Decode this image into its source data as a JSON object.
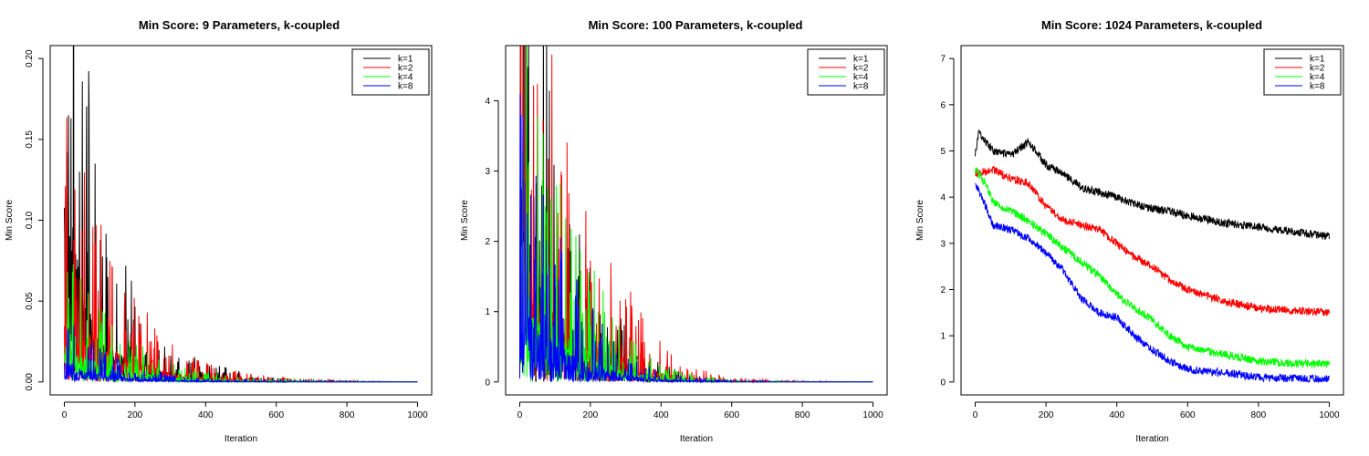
{
  "chart_data": [
    {
      "type": "line",
      "title": "Min Score: 9 Parameters, k-coupled",
      "xlabel": "Iteration",
      "ylabel": "Min Score",
      "xlim": [
        0,
        1000
      ],
      "ylim": [
        0,
        0.2
      ],
      "x_ticks": [
        0,
        200,
        400,
        600,
        800,
        1000
      ],
      "y_ticks": [
        0.0,
        0.05,
        0.1,
        0.15,
        0.2
      ],
      "y_tick_labels": [
        "0.00",
        "0.05",
        "0.10",
        "0.15",
        "0.20"
      ],
      "y_tick_rotated": true,
      "legend_position": "top-right",
      "series": [
        {
          "name": "k=1",
          "color": "#000000",
          "noisy": true,
          "points": [
            [
              0,
              0.19
            ],
            [
              5,
              0.2
            ],
            [
              10,
              0.1
            ],
            [
              20,
              0.16
            ],
            [
              40,
              0.09
            ],
            [
              60,
              0.07
            ],
            [
              80,
              0.05
            ],
            [
              100,
              0.035
            ],
            [
              150,
              0.025
            ],
            [
              200,
              0.02
            ],
            [
              250,
              0.012
            ],
            [
              300,
              0.008
            ],
            [
              400,
              0.004
            ],
            [
              500,
              0.002
            ],
            [
              600,
              0.0008
            ],
            [
              800,
              0.0002
            ],
            [
              1000,
              0.0
            ]
          ]
        },
        {
          "name": "k=2",
          "color": "#ff0000",
          "noisy": true,
          "points": [
            [
              0,
              0.06
            ],
            [
              10,
              0.05
            ],
            [
              30,
              0.045
            ],
            [
              60,
              0.04
            ],
            [
              100,
              0.035
            ],
            [
              150,
              0.025
            ],
            [
              200,
              0.018
            ],
            [
              250,
              0.012
            ],
            [
              300,
              0.008
            ],
            [
              400,
              0.004
            ],
            [
              500,
              0.002
            ],
            [
              600,
              0.001
            ],
            [
              800,
              0.0003
            ],
            [
              1000,
              0.0
            ]
          ]
        },
        {
          "name": "k=4",
          "color": "#00ff00",
          "noisy": true,
          "points": [
            [
              0,
              0.03
            ],
            [
              20,
              0.025
            ],
            [
              50,
              0.02
            ],
            [
              100,
              0.015
            ],
            [
              150,
              0.01
            ],
            [
              200,
              0.008
            ],
            [
              250,
              0.006
            ],
            [
              300,
              0.004
            ],
            [
              400,
              0.002
            ],
            [
              500,
              0.001
            ],
            [
              700,
              0.0003
            ],
            [
              1000,
              0.0
            ]
          ]
        },
        {
          "name": "k=8",
          "color": "#0000ff",
          "noisy": true,
          "points": [
            [
              0,
              0.02
            ],
            [
              20,
              0.015
            ],
            [
              50,
              0.01
            ],
            [
              100,
              0.007
            ],
            [
              150,
              0.005
            ],
            [
              200,
              0.003
            ],
            [
              300,
              0.0015
            ],
            [
              400,
              0.0008
            ],
            [
              600,
              0.0002
            ],
            [
              1000,
              0.0
            ]
          ]
        }
      ]
    },
    {
      "type": "line",
      "title": "Min Score: 100 Parameters, k-coupled",
      "xlabel": "Iteration",
      "ylabel": "Min Score",
      "xlim": [
        0,
        1000
      ],
      "ylim": [
        0,
        4.6
      ],
      "x_ticks": [
        0,
        200,
        400,
        600,
        800,
        1000
      ],
      "y_ticks": [
        0,
        1,
        2,
        3,
        4
      ],
      "y_tick_labels": [
        "0",
        "1",
        "2",
        "3",
        "4"
      ],
      "y_tick_rotated": false,
      "legend_position": "top-right",
      "series": [
        {
          "name": "k=1",
          "color": "#000000",
          "noisy": true,
          "points": [
            [
              0,
              4.0
            ],
            [
              10,
              4.2
            ],
            [
              20,
              3.0
            ],
            [
              40,
              2.2
            ],
            [
              60,
              1.8
            ],
            [
              80,
              1.6
            ],
            [
              100,
              1.3
            ],
            [
              150,
              0.9
            ],
            [
              200,
              0.6
            ],
            [
              250,
              0.4
            ],
            [
              300,
              0.25
            ],
            [
              350,
              0.15
            ],
            [
              400,
              0.08
            ],
            [
              500,
              0.03
            ],
            [
              600,
              0.01
            ],
            [
              800,
              0.003
            ],
            [
              1000,
              0.0
            ]
          ]
        },
        {
          "name": "k=2",
          "color": "#ff0000",
          "noisy": true,
          "points": [
            [
              0,
              3.8
            ],
            [
              10,
              4.4
            ],
            [
              30,
              2.2
            ],
            [
              60,
              1.7
            ],
            [
              100,
              1.4
            ],
            [
              150,
              1.1
            ],
            [
              200,
              0.8
            ],
            [
              250,
              0.6
            ],
            [
              300,
              0.45
            ],
            [
              350,
              0.3
            ],
            [
              400,
              0.18
            ],
            [
              450,
              0.1
            ],
            [
              500,
              0.06
            ],
            [
              600,
              0.02
            ],
            [
              800,
              0.005
            ],
            [
              1000,
              0.0
            ]
          ]
        },
        {
          "name": "k=4",
          "color": "#00ff00",
          "noisy": true,
          "points": [
            [
              0,
              1.8
            ],
            [
              20,
              1.6
            ],
            [
              50,
              1.3
            ],
            [
              100,
              1.0
            ],
            [
              150,
              0.75
            ],
            [
              200,
              0.55
            ],
            [
              250,
              0.35
            ],
            [
              300,
              0.22
            ],
            [
              350,
              0.14
            ],
            [
              400,
              0.08
            ],
            [
              500,
              0.03
            ],
            [
              600,
              0.01
            ],
            [
              800,
              0.002
            ],
            [
              1000,
              0.0
            ]
          ]
        },
        {
          "name": "k=8",
          "color": "#0000ff",
          "noisy": true,
          "points": [
            [
              0,
              1.5
            ],
            [
              20,
              1.3
            ],
            [
              50,
              1.0
            ],
            [
              100,
              0.75
            ],
            [
              150,
              0.5
            ],
            [
              200,
              0.35
            ],
            [
              250,
              0.22
            ],
            [
              300,
              0.14
            ],
            [
              350,
              0.08
            ],
            [
              400,
              0.05
            ],
            [
              500,
              0.02
            ],
            [
              600,
              0.006
            ],
            [
              800,
              0.001
            ],
            [
              1000,
              0.0
            ]
          ]
        }
      ]
    },
    {
      "type": "line",
      "title": "Min Score: 1024 Parameters, k-coupled",
      "xlabel": "Iteration",
      "ylabel": "Min Score",
      "xlim": [
        0,
        1000
      ],
      "ylim": [
        0,
        7
      ],
      "x_ticks": [
        0,
        200,
        400,
        600,
        800,
        1000
      ],
      "y_ticks": [
        0,
        1,
        2,
        3,
        4,
        5,
        6,
        7
      ],
      "y_tick_labels": [
        "0",
        "1",
        "2",
        "3",
        "4",
        "5",
        "6",
        "7"
      ],
      "y_tick_rotated": false,
      "legend_position": "top-right",
      "series": [
        {
          "name": "k=1",
          "color": "#000000",
          "noisy": true,
          "points": [
            [
              0,
              4.9
            ],
            [
              10,
              5.4
            ],
            [
              50,
              5.0
            ],
            [
              100,
              4.9
            ],
            [
              150,
              5.2
            ],
            [
              200,
              4.7
            ],
            [
              250,
              4.5
            ],
            [
              300,
              4.2
            ],
            [
              350,
              4.1
            ],
            [
              400,
              4.0
            ],
            [
              450,
              3.85
            ],
            [
              500,
              3.75
            ],
            [
              550,
              3.7
            ],
            [
              600,
              3.6
            ],
            [
              700,
              3.45
            ],
            [
              800,
              3.35
            ],
            [
              900,
              3.25
            ],
            [
              1000,
              3.15
            ]
          ]
        },
        {
          "name": "k=2",
          "color": "#ff0000",
          "noisy": true,
          "points": [
            [
              0,
              4.5
            ],
            [
              50,
              4.6
            ],
            [
              100,
              4.4
            ],
            [
              150,
              4.3
            ],
            [
              200,
              3.8
            ],
            [
              250,
              3.5
            ],
            [
              300,
              3.4
            ],
            [
              350,
              3.3
            ],
            [
              400,
              3.0
            ],
            [
              450,
              2.7
            ],
            [
              500,
              2.5
            ],
            [
              550,
              2.2
            ],
            [
              600,
              2.0
            ],
            [
              700,
              1.75
            ],
            [
              800,
              1.6
            ],
            [
              900,
              1.55
            ],
            [
              1000,
              1.5
            ]
          ]
        },
        {
          "name": "k=4",
          "color": "#00ff00",
          "noisy": true,
          "points": [
            [
              0,
              4.6
            ],
            [
              30,
              4.3
            ],
            [
              50,
              3.9
            ],
            [
              100,
              3.7
            ],
            [
              150,
              3.5
            ],
            [
              200,
              3.2
            ],
            [
              250,
              2.9
            ],
            [
              300,
              2.6
            ],
            [
              350,
              2.3
            ],
            [
              400,
              1.9
            ],
            [
              450,
              1.6
            ],
            [
              500,
              1.35
            ],
            [
              550,
              1.0
            ],
            [
              600,
              0.75
            ],
            [
              700,
              0.6
            ],
            [
              800,
              0.45
            ],
            [
              900,
              0.4
            ],
            [
              1000,
              0.38
            ]
          ]
        },
        {
          "name": "k=8",
          "color": "#0000ff",
          "noisy": true,
          "points": [
            [
              0,
              4.3
            ],
            [
              30,
              3.8
            ],
            [
              50,
              3.4
            ],
            [
              100,
              3.3
            ],
            [
              150,
              3.1
            ],
            [
              200,
              2.8
            ],
            [
              250,
              2.4
            ],
            [
              300,
              1.8
            ],
            [
              350,
              1.5
            ],
            [
              400,
              1.4
            ],
            [
              450,
              1.0
            ],
            [
              500,
              0.7
            ],
            [
              550,
              0.45
            ],
            [
              600,
              0.28
            ],
            [
              700,
              0.2
            ],
            [
              800,
              0.1
            ],
            [
              900,
              0.07
            ],
            [
              1000,
              0.06
            ]
          ]
        }
      ]
    }
  ]
}
